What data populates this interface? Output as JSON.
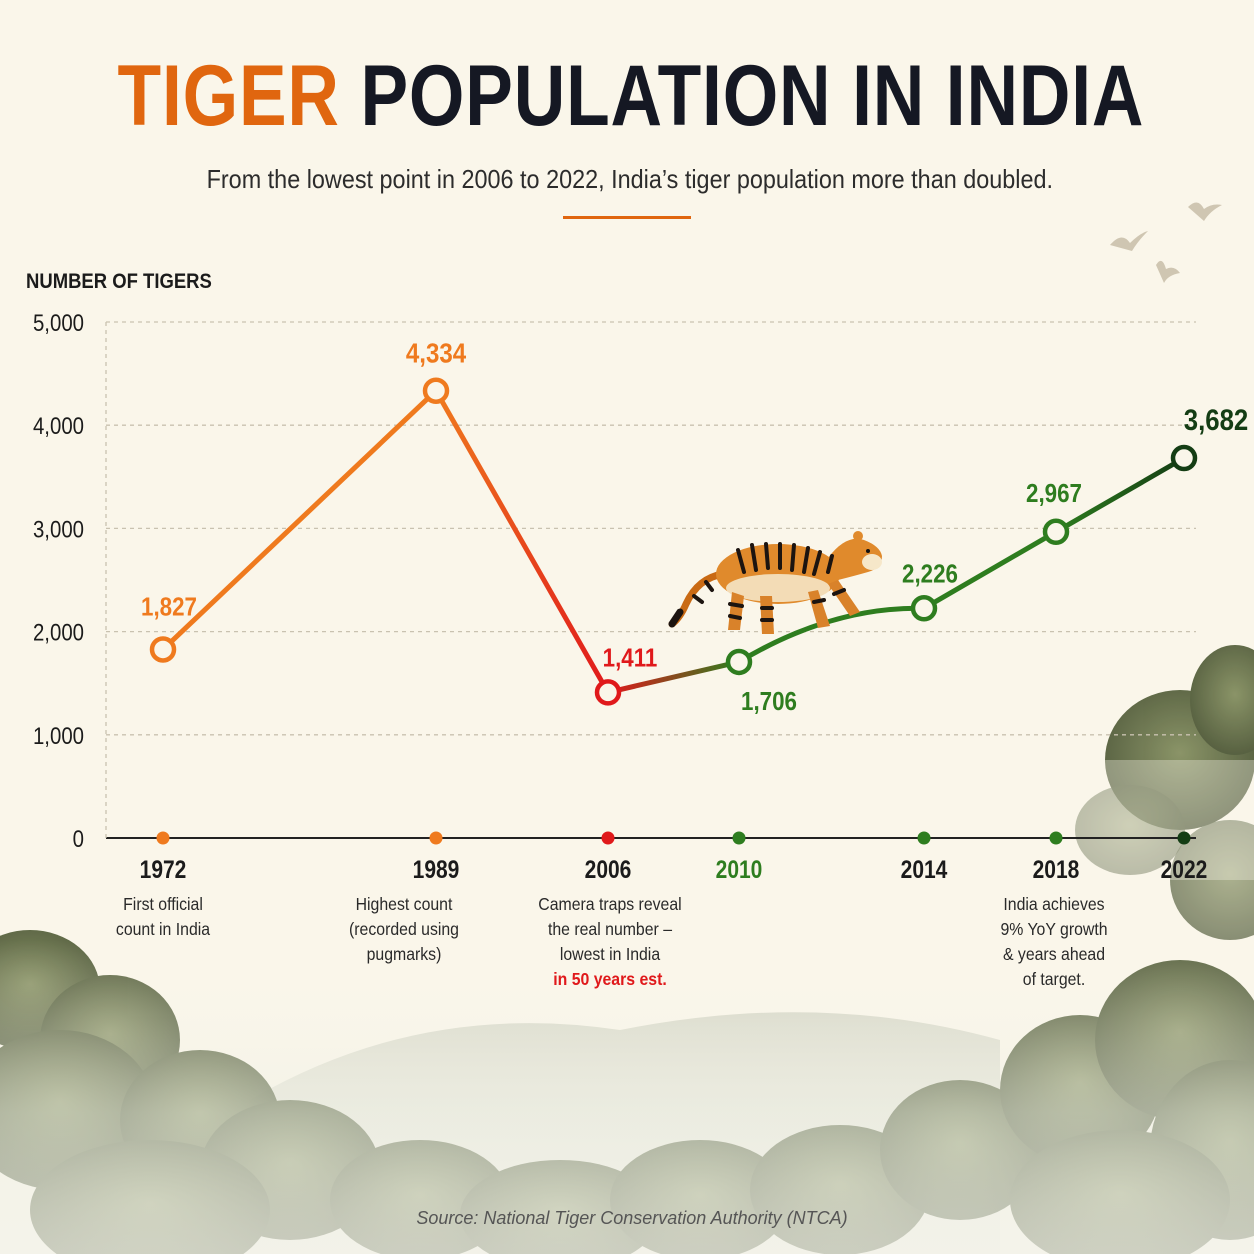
{
  "header": {
    "title_accent": "TIGER",
    "title_rest": "POPULATION IN INDIA",
    "subtitle": "From the lowest point in 2006 to 2022, India’s tiger population more than doubled."
  },
  "source": "Source: National Tiger Conservation Authority (NTCA)",
  "decor": {
    "tiger_icon": "tiger-icon",
    "birds_icon": "birds-icon",
    "forest_icon": "forest-icon"
  },
  "colors": {
    "orange": "#ef7a1e",
    "red": "#e0191b",
    "green": "#2e7d1f",
    "dark_green": "#143d14",
    "grid": "#c9c2b0",
    "axis": "#222222"
  },
  "chart_data": {
    "type": "line",
    "ylabel": "NUMBER OF TIGERS",
    "ylim": [
      0,
      5000
    ],
    "yticks": [
      {
        "value": 0,
        "label": "0"
      },
      {
        "value": 1000,
        "label": "1,000"
      },
      {
        "value": 2000,
        "label": "2,000"
      },
      {
        "value": 3000,
        "label": "3,000"
      },
      {
        "value": 4000,
        "label": "4,000"
      },
      {
        "value": 5000,
        "label": "5,000"
      }
    ],
    "grid": true,
    "categories": [
      "1972",
      "1989",
      "2006",
      "2010",
      "2014",
      "2018",
      "2022"
    ],
    "points": [
      {
        "year": "1972",
        "value": 1827,
        "label": "1,827",
        "color": "#ef7a1e",
        "note": [
          "First official",
          "count in India"
        ]
      },
      {
        "year": "1989",
        "value": 4334,
        "label": "4,334",
        "color": "#ef7a1e",
        "note": [
          "Highest count",
          "(recorded using",
          "pugmarks)"
        ]
      },
      {
        "year": "2006",
        "value": 1411,
        "label": "1,411",
        "color": "#e0191b",
        "note": [
          "Camera traps reveal",
          "the real number –",
          "lowest in India"
        ],
        "note_highlight": "in 50 years est."
      },
      {
        "year": "2010",
        "value": 1706,
        "label": "1,706",
        "color": "#2e7d1f",
        "note": []
      },
      {
        "year": "2014",
        "value": 2226,
        "label": "2,226",
        "color": "#2e7d1f",
        "note": []
      },
      {
        "year": "2018",
        "value": 2967,
        "label": "2,967",
        "color": "#2e7d1f",
        "note": [
          "India achieves",
          "9% YoY growth",
          "& years ahead",
          "of target."
        ]
      },
      {
        "year": "2022",
        "value": 3682,
        "label": "3,682",
        "color": "#143d14",
        "note": []
      }
    ]
  }
}
